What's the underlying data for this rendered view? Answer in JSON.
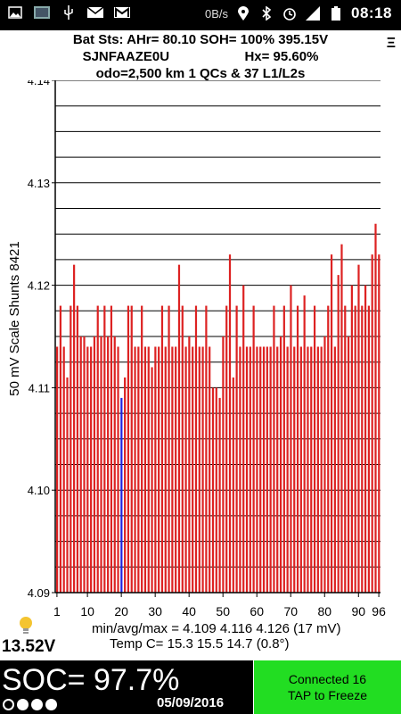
{
  "status_bar": {
    "left_icons": [
      "image-icon",
      "photo-icon",
      "usb-icon",
      "mail-icon",
      "gmail-icon"
    ],
    "net_speed": "0B/s",
    "right_icons": [
      "location-icon",
      "bluetooth-icon",
      "alarm-icon",
      "signal-icon",
      "battery-icon"
    ],
    "time": "08:18"
  },
  "header": {
    "line1": "Bat Sts: AHr= 80.10 SOH= 100% 395.15V",
    "line2": "SJNFAAZE0U",
    "line2_right": "Hx= 95.60%",
    "line3": "odo=2,500 km 1 QCs & 37 L1/L2s",
    "menu_glyph": "Ξ"
  },
  "chart_data": {
    "type": "bar",
    "ylabel": "50 mV Scale   Shunts 8421",
    "ylim": [
      4.09,
      4.14
    ],
    "yticks": [
      "4.14",
      "4.13",
      "4.12",
      "4.11",
      "4.10",
      "4.09"
    ],
    "xticks": [
      "1",
      "10",
      "20",
      "30",
      "40",
      "50",
      "60",
      "70",
      "80",
      "90",
      "96"
    ],
    "xtick_values": [
      1,
      10,
      20,
      30,
      40,
      50,
      60,
      70,
      80,
      90,
      96
    ],
    "grid": true,
    "bar_color": "#dd2222",
    "highlight_color": "#2222dd",
    "highlight_index": 19,
    "values": [
      4.114,
      4.118,
      4.114,
      4.111,
      4.118,
      4.122,
      4.118,
      4.115,
      4.115,
      4.114,
      4.114,
      4.115,
      4.118,
      4.115,
      4.118,
      4.115,
      4.118,
      4.115,
      4.114,
      4.109,
      4.111,
      4.118,
      4.118,
      4.114,
      4.114,
      4.118,
      4.114,
      4.114,
      4.112,
      4.114,
      4.114,
      4.118,
      4.114,
      4.118,
      4.114,
      4.114,
      4.122,
      4.118,
      4.114,
      4.115,
      4.114,
      4.118,
      4.114,
      4.114,
      4.118,
      4.114,
      4.11,
      4.11,
      4.109,
      4.115,
      4.118,
      4.123,
      4.111,
      4.118,
      4.114,
      4.12,
      4.114,
      4.114,
      4.118,
      4.114,
      4.114,
      4.114,
      4.114,
      4.114,
      4.118,
      4.114,
      4.115,
      4.118,
      4.114,
      4.12,
      4.114,
      4.118,
      4.114,
      4.119,
      4.114,
      4.114,
      4.118,
      4.114,
      4.114,
      4.115,
      4.118,
      4.123,
      4.114,
      4.121,
      4.124,
      4.118,
      4.115,
      4.12,
      4.118,
      4.122,
      4.118,
      4.12,
      4.118,
      4.123,
      4.126,
      4.123
    ]
  },
  "stats": {
    "line1": "min/avg/max = 4.109 4.116 4.126  (17 mV)",
    "line2": "Temp C= 15.3  15.5  14.7  (0.8°)"
  },
  "voltage": "13.52V",
  "soc": "SOC= 97.7%",
  "date": "05/09/2016",
  "connect_button": {
    "line1": "Connected 16",
    "line2": "TAP to Freeze"
  }
}
